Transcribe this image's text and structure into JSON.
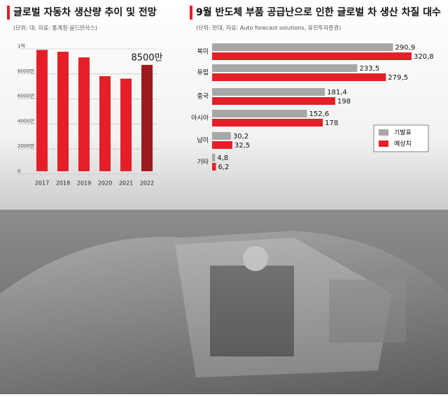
{
  "chart_data": [
    {
      "type": "bar",
      "title": "글로벌 자동차 생산량 추이 및 전망",
      "subtitle": "(단위: 대, 자료: 통계청·골드만삭스)",
      "categories": [
        "2017",
        "2018",
        "2019",
        "2020",
        "2021",
        "2022"
      ],
      "values": [
        97000000,
        95500000,
        91000000,
        76000000,
        74000000,
        85000000
      ],
      "value_labels": [
        null,
        null,
        null,
        null,
        null,
        "8500만"
      ],
      "colors": [
        "#e41f28",
        "#e41f28",
        "#e41f28",
        "#e41f28",
        "#e41f28",
        "#9c1a1f"
      ],
      "ylim": [
        0,
        100000000
      ],
      "yticks": [
        0,
        {
          "value": 20000000,
          "label": "2000만"
        },
        {
          "value": 40000000,
          "label": "4000만"
        },
        {
          "value": 60000000,
          "label": "6000만"
        },
        {
          "value": 80000000,
          "label": "8000만"
        },
        {
          "value": 100000000,
          "label": "1억"
        }
      ],
      "grid": true
    },
    {
      "type": "hbar",
      "title": "9월 반도체 부품 공급난으로 인한 글로벌 차 생산 차질 대수",
      "subtitle": "(단위: 만대, 자료: Auto forecast solutions, 유진투자증권)",
      "categories": [
        "북미",
        "유럽",
        "중국",
        "아시아",
        "남미",
        "기타"
      ],
      "series": [
        {
          "name": "기발표",
          "color": "#a7a7a7",
          "values": [
            290.9,
            233.5,
            181.4,
            152.6,
            30.2,
            4.8
          ],
          "value_labels": [
            "290,9",
            "233,5",
            "181,4",
            "152,6",
            "30,2",
            "4,8"
          ]
        },
        {
          "name": "예상치",
          "color": "#e41f28",
          "values": [
            320.8,
            279.5,
            198,
            178,
            32.5,
            6.2
          ],
          "value_labels": [
            "320,8",
            "279,5",
            "198",
            "178",
            "32,5",
            "6,2"
          ]
        }
      ],
      "legend": "right"
    }
  ]
}
